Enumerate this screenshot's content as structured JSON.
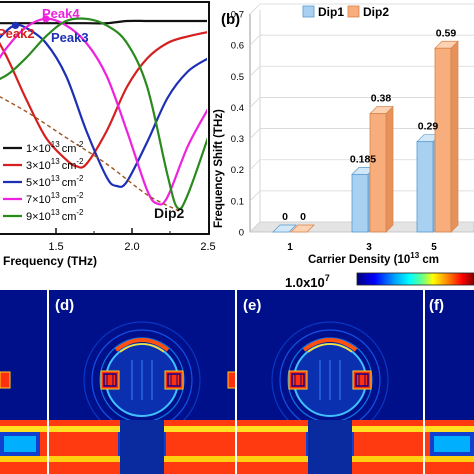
{
  "panel_a": {
    "legend": [
      "1×10",
      "3×10",
      "5×10",
      "7×10",
      "9×10"
    ],
    "legend_exp": "13",
    "legend_unit": "cm",
    "legend_unit_exp": "-2",
    "peak_labels": [
      "Peak2",
      "Peak4",
      "Peak3"
    ],
    "dip_label": "Dip2"
  },
  "panel_b": {
    "tag": "(b)"
  },
  "colorbar": {
    "max_label": "1.0x10",
    "max_exp": "7",
    "colors": [
      "#00007f",
      "#0000ff",
      "#00a0ff",
      "#00ffff",
      "#60ff90",
      "#ffff00",
      "#ff8000",
      "#ff0000",
      "#800000"
    ]
  },
  "field_maps": {
    "labels": [
      "(d)",
      "(e)",
      "(f)"
    ]
  },
  "chart_data": [
    {
      "type": "line",
      "xlabel": "Frequency (THz)",
      "ylabel": "",
      "xlim": [
        1.0,
        2.5
      ],
      "x_ticks": [
        "1.5",
        "2.0",
        "2.5"
      ],
      "colors": [
        "#111111",
        "#d42020",
        "#1c2fb5",
        "#ee22dd",
        "#2a8a1e"
      ],
      "series": [
        {
          "name": "1×10^13 cm^-2",
          "x": [
            1.0,
            1.1,
            1.2,
            1.3,
            1.4,
            1.5,
            1.6,
            1.7,
            1.8,
            1.9,
            2.0,
            2.1,
            2.2,
            2.3,
            2.4,
            2.5
          ],
          "y": [
            0.93,
            0.94,
            0.94,
            0.94,
            0.94,
            0.94,
            0.94,
            0.94,
            0.94,
            0.94,
            0.94,
            0.95,
            0.95,
            0.95,
            0.95,
            0.95
          ]
        },
        {
          "name": "3×10^13 cm^-2",
          "x": [
            1.0,
            1.1,
            1.2,
            1.3,
            1.35,
            1.4,
            1.5,
            1.6,
            1.7,
            1.8,
            1.85,
            1.9,
            2.0,
            2.1,
            2.2,
            2.3,
            2.4,
            2.5
          ],
          "y": [
            0.72,
            0.8,
            0.88,
            0.93,
            0.96,
            0.95,
            0.8,
            0.6,
            0.42,
            0.32,
            0.29,
            0.3,
            0.45,
            0.65,
            0.78,
            0.85,
            0.88,
            0.9
          ]
        },
        {
          "name": "5×10^13 cm^-2",
          "x": [
            1.0,
            1.1,
            1.2,
            1.3,
            1.4,
            1.5,
            1.55,
            1.6,
            1.7,
            1.8,
            1.9,
            2.0,
            2.05,
            2.1,
            2.2,
            2.3,
            2.4,
            2.5
          ],
          "y": [
            0.85,
            0.7,
            0.6,
            0.68,
            0.8,
            0.9,
            0.93,
            0.92,
            0.85,
            0.7,
            0.45,
            0.24,
            0.2,
            0.22,
            0.4,
            0.6,
            0.72,
            0.78
          ]
        },
        {
          "name": "7×10^13 cm^-2",
          "x": [
            1.0,
            1.1,
            1.2,
            1.3,
            1.4,
            1.5,
            1.6,
            1.7,
            1.8,
            1.9,
            2.0,
            2.1,
            2.2,
            2.25,
            2.3,
            2.4,
            2.5
          ],
          "y": [
            0.96,
            0.85,
            0.7,
            0.55,
            0.68,
            0.82,
            0.92,
            0.96,
            0.93,
            0.85,
            0.7,
            0.45,
            0.18,
            0.12,
            0.15,
            0.38,
            0.55
          ]
        },
        {
          "name": "9×10^13 cm^-2",
          "x": [
            1.0,
            1.1,
            1.2,
            1.3,
            1.4,
            1.5,
            1.6,
            1.7,
            1.8,
            1.9,
            2.0,
            2.1,
            2.2,
            2.3,
            2.35,
            2.4,
            2.5
          ],
          "y": [
            0.93,
            0.96,
            0.9,
            0.8,
            0.68,
            0.7,
            0.78,
            0.88,
            0.95,
            0.96,
            0.93,
            0.85,
            0.65,
            0.25,
            0.1,
            0.16,
            0.42
          ]
        },
        {
          "name": "Dip2 trend",
          "x": [
            1.25,
            1.4,
            1.6,
            1.8,
            2.0,
            2.2,
            2.35
          ],
          "y": [
            0.7,
            0.64,
            0.54,
            0.42,
            0.3,
            0.16,
            0.09
          ]
        }
      ],
      "peak_markers": [
        {
          "label": "Peak2",
          "x": 1.35,
          "y": 0.96,
          "color": "#d42020"
        },
        {
          "label": "Peak4",
          "x": 1.7,
          "y": 0.96,
          "color": "#ee22dd"
        },
        {
          "label": "Peak3",
          "x": 1.55,
          "y": 0.93,
          "color": "#1c2fb5"
        }
      ]
    },
    {
      "type": "bar",
      "title": "",
      "xlabel": "Carrier Density (10",
      "xlabel_exp": "13",
      "xlabel_tail": " cm",
      "ylabel": "Frequency Shift (THz)",
      "ylim": [
        0,
        0.7
      ],
      "y_ticks": [
        "0",
        "0.1",
        "0.2",
        "0.3",
        "0.4",
        "0.5",
        "0.6",
        "0.7"
      ],
      "categories": [
        "1",
        "3",
        "5"
      ],
      "series": [
        {
          "name": "Dip1",
          "values": [
            0,
            0.185,
            0.29
          ],
          "labels": [
            "0",
            "0.185",
            "0.29"
          ],
          "color": "#a8d0f0"
        },
        {
          "name": "Dip2",
          "values": [
            0,
            0.38,
            0.59
          ],
          "labels": [
            "0",
            "0.38",
            "0.59"
          ],
          "color": "#f7ae7c"
        }
      ]
    }
  ]
}
